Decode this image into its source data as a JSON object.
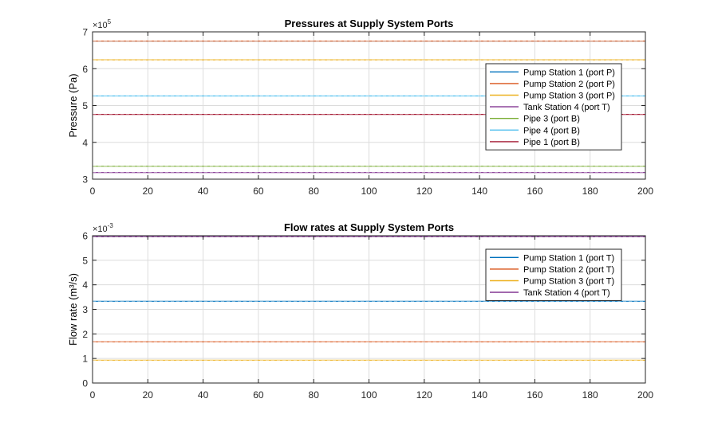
{
  "chart_data": [
    {
      "type": "line",
      "title": "Pressures at Supply System Ports",
      "ylabel": "Pressure (Pa)",
      "exponent": {
        "base": "×10",
        "power": "5"
      },
      "xlim": [
        0,
        200
      ],
      "ylim": [
        3,
        7
      ],
      "xticks": [
        0,
        20,
        40,
        60,
        80,
        100,
        120,
        140,
        160,
        180,
        200
      ],
      "yticks": [
        3,
        4,
        5,
        6,
        7
      ],
      "grid": true,
      "legend_position": "right",
      "series": [
        {
          "name": "Pump Station 1 (port P)",
          "color": "#0072BD",
          "values": [
            6.75,
            6.75
          ]
        },
        {
          "name": "Pump Station 2 (port P)",
          "color": "#D95319",
          "values": [
            6.75,
            6.75
          ]
        },
        {
          "name": "Pump Station 3 (port P)",
          "color": "#EDB120",
          "values": [
            6.24,
            6.24
          ]
        },
        {
          "name": "Tank Station 4 (port T)",
          "color": "#7E2F8E",
          "values": [
            3.18,
            3.18
          ]
        },
        {
          "name": "Pipe 3 (port B)",
          "color": "#77AC30",
          "values": [
            3.35,
            3.35
          ]
        },
        {
          "name": "Pipe 4 (port B)",
          "color": "#4DBEEE",
          "values": [
            5.26,
            5.26
          ]
        },
        {
          "name": "Pipe 1 (port B)",
          "color": "#A2142F",
          "values": [
            4.76,
            4.76
          ]
        }
      ],
      "x": [
        0,
        200
      ]
    },
    {
      "type": "line",
      "title": "Flow rates at Supply System Ports",
      "ylabel": "Flow  rate  (m³/s)",
      "exponent": {
        "base": "×10",
        "power": "-3"
      },
      "xlim": [
        0,
        200
      ],
      "ylim": [
        0,
        6
      ],
      "xticks": [
        0,
        20,
        40,
        60,
        80,
        100,
        120,
        140,
        160,
        180,
        200
      ],
      "yticks": [
        0,
        1,
        2,
        3,
        4,
        5,
        6
      ],
      "grid": true,
      "legend_position": "top-right",
      "series": [
        {
          "name": "Pump Station 1 (port T)",
          "color": "#0072BD",
          "values": [
            3.33,
            3.33
          ]
        },
        {
          "name": "Pump Station 2 (port T)",
          "color": "#D95319",
          "values": [
            1.68,
            1.68
          ]
        },
        {
          "name": "Pump Station 3 (port T)",
          "color": "#EDB120",
          "values": [
            0.93,
            0.93
          ]
        },
        {
          "name": "Tank Station 4 (port T)",
          "color": "#7E2F8E",
          "values": [
            5.96,
            5.96
          ]
        }
      ],
      "x": [
        0,
        200
      ]
    }
  ]
}
